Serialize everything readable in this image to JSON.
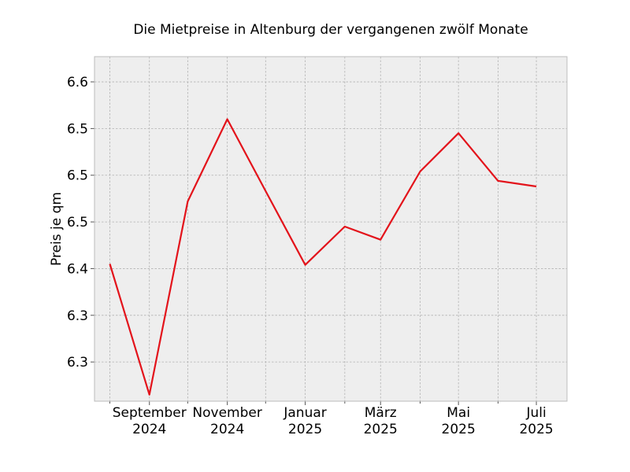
{
  "chart_data": {
    "type": "line",
    "title": "Die Mietpreise in Altenburg der vergangenen zwölf Monate",
    "xlabel": "",
    "ylabel": "Preis je qm",
    "x": [
      "2024-08",
      "2024-09",
      "2024-10",
      "2024-11",
      "2024-12",
      "2025-01",
      "2025-02",
      "2025-03",
      "2025-04",
      "2025-05",
      "2025-06",
      "2025-07"
    ],
    "series": [
      {
        "values": [
          6.405,
          6.265,
          6.472,
          6.56,
          6.483,
          6.404,
          6.445,
          6.431,
          6.504,
          6.545,
          6.494,
          6.488
        ]
      }
    ],
    "xticks": [
      {
        "x": "2024-09",
        "line1": "September",
        "line2": "2024"
      },
      {
        "x": "2024-11",
        "line1": "November",
        "line2": "2024"
      },
      {
        "x": "2025-01",
        "line1": "Januar",
        "line2": "2025"
      },
      {
        "x": "2025-03",
        "line1": "März",
        "line2": "2025"
      },
      {
        "x": "2025-05",
        "line1": "Mai",
        "line2": "2025"
      },
      {
        "x": "2025-07",
        "line1": "Juli",
        "line2": "2025"
      }
    ],
    "minor_xticks": [
      "2024-08",
      "2024-10",
      "2024-12",
      "2025-02",
      "2025-04",
      "2025-06"
    ],
    "yticks": [
      {
        "value": 6.3,
        "label": "6.3"
      },
      {
        "value": 6.35,
        "label": "6.3"
      },
      {
        "value": 6.4,
        "label": "6.4"
      },
      {
        "value": 6.45,
        "label": "6.5"
      },
      {
        "value": 6.5,
        "label": "6.5"
      },
      {
        "value": 6.55,
        "label": "6.5"
      },
      {
        "value": 6.6,
        "label": "6.6"
      }
    ],
    "xlim": [
      "2024-07-20",
      "2025-07-25"
    ],
    "ylim": [
      6.258,
      6.627
    ],
    "grid": true,
    "colors": {
      "line": "#e3131b",
      "plot_bg": "#eeeeee",
      "grid": "#b2b2b2",
      "frame": "#bcbcbc"
    }
  }
}
